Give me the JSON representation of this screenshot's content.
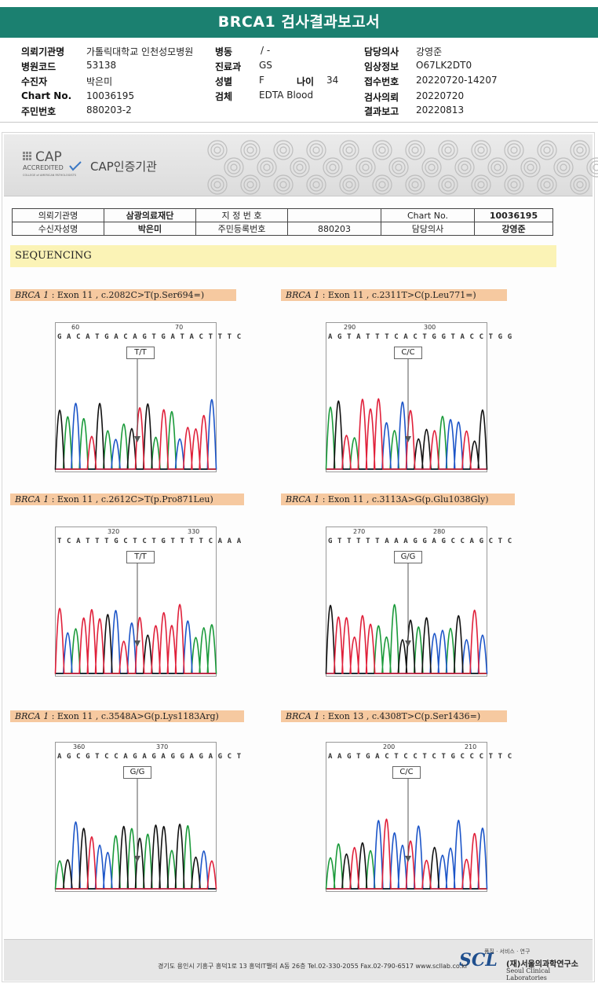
{
  "report": {
    "title": "BRCA1 검사결과보고서"
  },
  "info": {
    "hospital_label": "의뢰기관명",
    "hospital": "가톨릭대학교 인천성모병원",
    "code_label": "병원코드",
    "code": "53138",
    "patient_label": "수진자",
    "patient": "박은미",
    "chart_label": "Chart No.",
    "chart": "10036195",
    "id_label": "주민번호",
    "id": "880203-2",
    "ward_label": "병동",
    "ward": "/ -",
    "dept_label": "진료과",
    "dept": "GS",
    "sex_label": "성별",
    "sex": "F",
    "age_label": "나이",
    "age": "34",
    "specimen_label": "검체",
    "specimen": "EDTA Blood",
    "doctor_label": "담당의사",
    "doctor": "강영준",
    "clinical_label": "임상정보",
    "clinical": "O67LK2DT0",
    "receipt_label": "접수번호",
    "receipt": "20220720-14207",
    "testdate_label": "검사의뢰",
    "testdate": "20220720",
    "resultdate_label": "결과보고",
    "resultdate": "20220813"
  },
  "cap": {
    "logo_big": "CAP",
    "logo_small": "ACCREDITED",
    "logo_tiny": "COLLEGE of AMERICAN PATHOLOGISTS",
    "title": "CAP인증기관"
  },
  "ptable": {
    "c1": "의뢰기관명",
    "c2": "삼광의료재단",
    "c3": "지 정 번 호",
    "c4": "",
    "c5": "Chart No.",
    "c6": "10036195",
    "d1": "수신자성명",
    "d2": "박은미",
    "d3": "주민등록번호",
    "d4": "880203",
    "d5": "담당의사",
    "d6": "강영준"
  },
  "section": {
    "sequencing": "SEQUENCING"
  },
  "variants": [
    {
      "gene": "BRCA 1",
      "detail": " : Exon 11 , c.2082C>T(p.Ser694=)",
      "genotype": "T/T",
      "seq": "G A C A T G A C A G T G A T A C T T T C",
      "pos1": "60",
      "pos2": "70"
    },
    {
      "gene": "BRCA 1",
      "detail": " : Exon 11 , c.2311T>C(p.Leu771=)",
      "genotype": "C/C",
      "seq": "A G T A T T T C A C T G G T A C C T G G",
      "pos1": "290",
      "pos2": "300"
    },
    {
      "gene": "BRCA 1",
      "detail": " : Exon 11 , c.2612C>T(p.Pro871Leu)",
      "genotype": "T/T",
      "seq": "T C A T T T G C T C T G T T T T C A A A",
      "pos1": "320",
      "pos2": "330"
    },
    {
      "gene": "BRCA 1",
      "detail": " : Exon 11 , c.3113A>G(p.Glu1038Gly)",
      "genotype": "G/G",
      "seq": "G T T T T T A A A G G A G C C A G C T C",
      "pos1": "270",
      "pos2": "280"
    },
    {
      "gene": "BRCA 1",
      "detail": " : Exon 11 , c.3548A>G(p.Lys1183Arg)",
      "genotype": "G/G",
      "seq": "A G C G T C C A G A G A G G A G A G C T",
      "pos1": "360",
      "pos2": "370"
    },
    {
      "gene": "BRCA 1",
      "detail": " : Exon 13 , c.4308T>C(p.Ser1436=)",
      "genotype": "C/C",
      "seq": "A A G T G A C T C C T C T G C C C T T C",
      "pos1": "200",
      "pos2": "210"
    }
  ],
  "footer": {
    "small": "품질 · 서비스 · 연구",
    "logo": "SCL",
    "org": "(재)서울의과학연구소",
    "org_en": "Seoul Clinical Laboratories",
    "address": "경기도 용인시 기흥구 흥덕1로 13 흥덕IT밸리 A동 26층  Tel.02-330-2055  Fax.02-790-6517  www.scllab.co.kr"
  },
  "colors": {
    "title_bg": "#1b8070",
    "label_bg": "#f6c9a0",
    "seq_bg": "#fbf3b6"
  }
}
